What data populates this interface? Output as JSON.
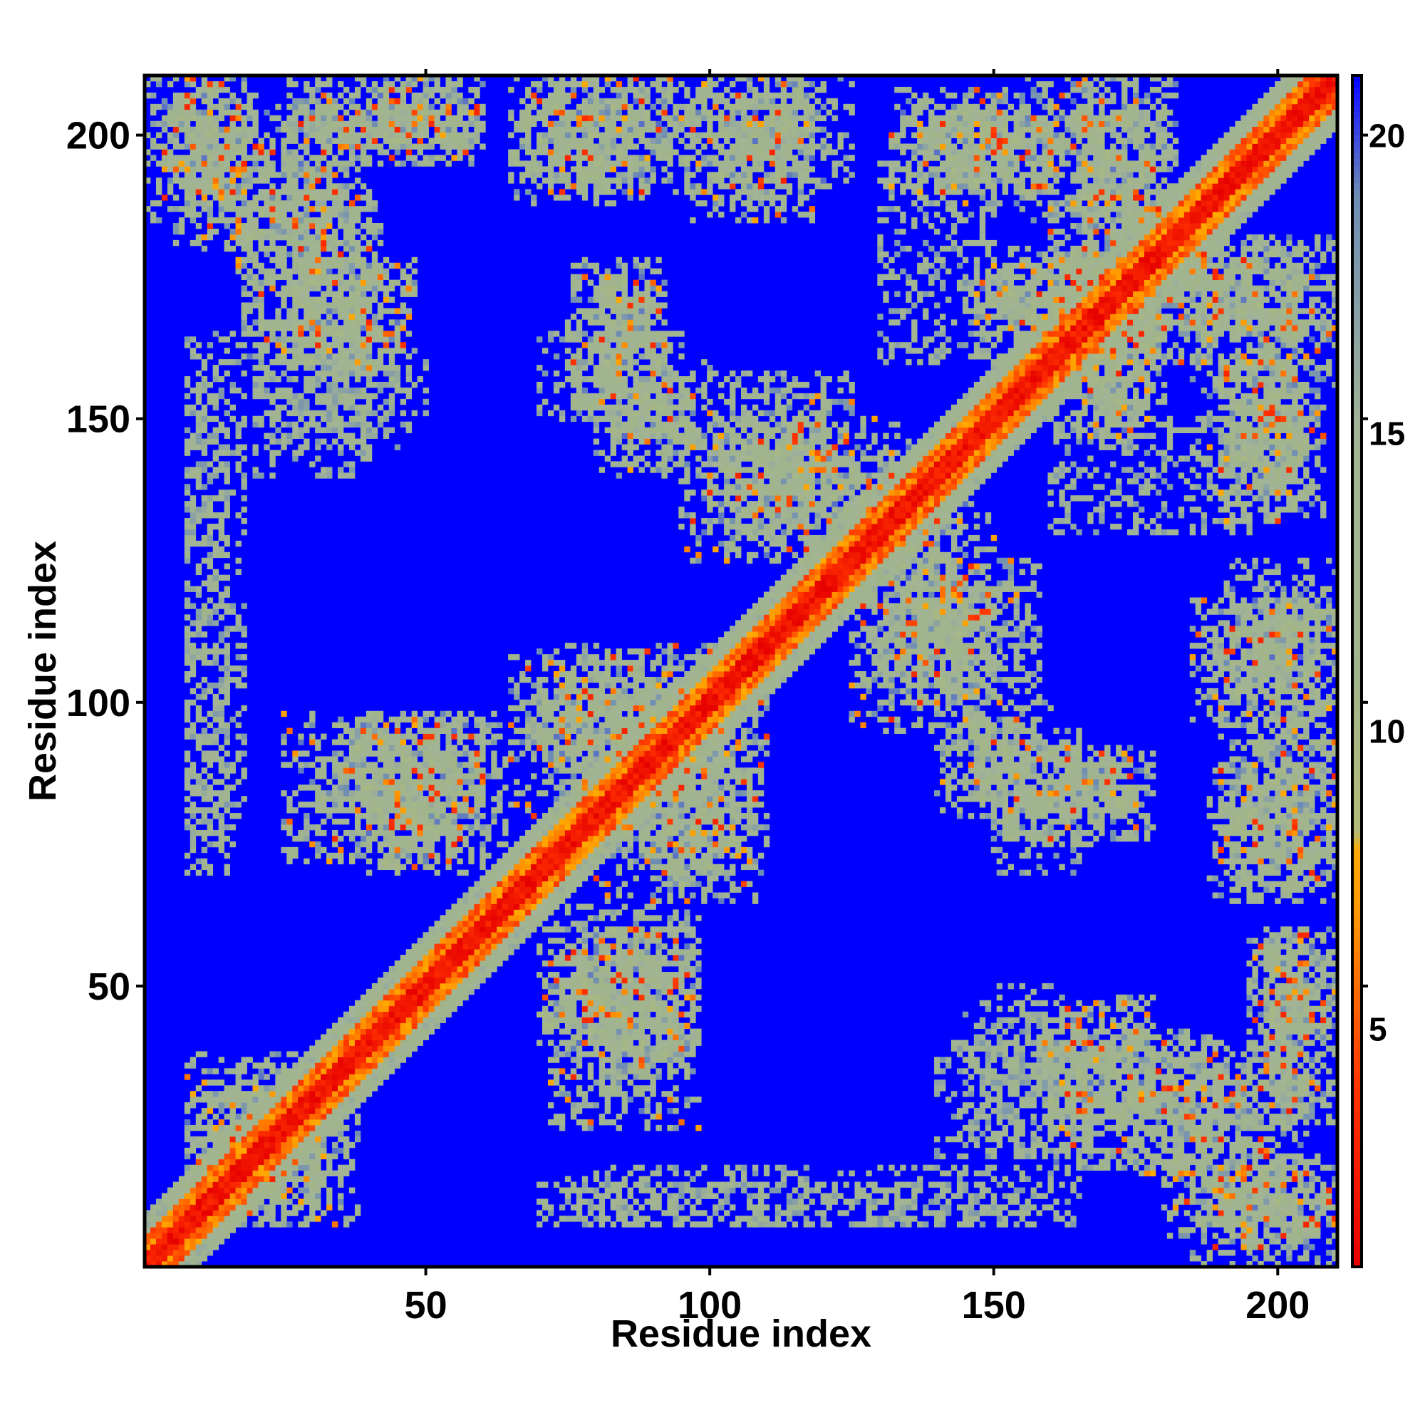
{
  "chart_data": {
    "type": "heatmap",
    "title": "",
    "xlabel": "Residue index",
    "ylabel": "Residue index",
    "xlim": [
      1,
      210
    ],
    "ylim": [
      1,
      210
    ],
    "x_ticks": [
      50,
      100,
      150,
      200
    ],
    "y_ticks": [
      50,
      100,
      150,
      200
    ],
    "colorbar": {
      "ticks": [
        5,
        10,
        15,
        20
      ],
      "range": [
        1,
        21
      ],
      "colors": {
        "red": "#ff0000",
        "orange": "#ff9900",
        "sage": "#a0b48c",
        "steel": "#7d9bb4",
        "blue": "#0000ff"
      },
      "gradient": [
        {
          "value": 1,
          "color": "#e60000"
        },
        {
          "value": 4,
          "color": "#ff3300"
        },
        {
          "value": 7,
          "color": "#ff9900"
        },
        {
          "value": 8,
          "color": "#ffaa00"
        },
        {
          "value": 8.3,
          "color": "#b4bc78"
        },
        {
          "value": 11,
          "color": "#a0b48c"
        },
        {
          "value": 15,
          "color": "#a3b496"
        },
        {
          "value": 19,
          "color": "#6e8cb4"
        },
        {
          "value": 20.6,
          "color": "#1e1efa"
        },
        {
          "value": 21,
          "color": "#0000ff"
        }
      ]
    },
    "background_value": 21,
    "diagonal": {
      "core": [
        0,
        1,
        2
      ],
      "mid": [
        3,
        4,
        5
      ],
      "outer": [
        6,
        9
      ]
    },
    "contact_regions": [
      {
        "x": [
          5,
          20
        ],
        "y": [
          180,
          210
        ]
      },
      {
        "x": [
          18,
          42
        ],
        "y": [
          160,
          190
        ]
      },
      {
        "x": [
          25,
          60
        ],
        "y": [
          195,
          210
        ]
      },
      {
        "x": [
          65,
          90
        ],
        "y": [
          188,
          210
        ]
      },
      {
        "x": [
          96,
          118
        ],
        "y": [
          185,
          210
        ]
      },
      {
        "x": [
          132,
          160
        ],
        "y": [
          190,
          208
        ]
      },
      {
        "x": [
          165,
          180
        ],
        "y": [
          175,
          205
        ]
      },
      {
        "x": [
          148,
          190
        ],
        "y": [
          160,
          180
        ]
      },
      {
        "x": [
          185,
          210
        ],
        "y": [
          155,
          182
        ]
      },
      {
        "x": [
          75,
          92
        ],
        "y": [
          150,
          178
        ]
      },
      {
        "x": [
          95,
          135
        ],
        "y": [
          125,
          150
        ]
      },
      {
        "x": [
          165,
          178
        ],
        "y": [
          145,
          170
        ]
      },
      {
        "x": [
          188,
          205
        ],
        "y": [
          135,
          160
        ]
      },
      {
        "x": [
          130,
          158
        ],
        "y": [
          100,
          125
        ]
      },
      {
        "x": [
          25,
          60
        ],
        "y": [
          72,
          98
        ]
      },
      {
        "x": [
          65,
          90
        ],
        "y": [
          80,
          108
        ]
      },
      {
        "x": [
          88,
          110
        ],
        "y": [
          70,
          100
        ]
      },
      {
        "x": [
          70,
          98
        ],
        "y": [
          38,
          64
        ]
      },
      {
        "x": [
          140,
          160
        ],
        "y": [
          80,
          100
        ]
      },
      {
        "x": [
          162,
          175
        ],
        "y": [
          80,
          92
        ]
      },
      {
        "x": [
          190,
          210
        ],
        "y": [
          70,
          100
        ]
      },
      {
        "x": [
          190,
          210
        ],
        "y": [
          100,
          125
        ]
      },
      {
        "x": [
          158,
          178
        ],
        "y": [
          25,
          48
        ]
      },
      {
        "x": [
          175,
          205
        ],
        "y": [
          15,
          40
        ]
      },
      {
        "x": [
          185,
          210
        ],
        "y": [
          1,
          20
        ]
      },
      {
        "x": [
          8,
          38
        ],
        "y": [
          8,
          30
        ]
      },
      {
        "x": [
          195,
          210
        ],
        "y": [
          40,
          60
        ]
      }
    ],
    "sparse_regions": [
      {
        "x": [
          8,
          15
        ],
        "y": [
          120,
          155
        ]
      },
      {
        "x": [
          8,
          15
        ],
        "y": [
          70,
          118
        ]
      },
      {
        "x": [
          70,
          95
        ],
        "y": [
          150,
          165
        ]
      },
      {
        "x": [
          75,
          165
        ],
        "y": [
          8,
          18
        ]
      },
      {
        "x": [
          145,
          165
        ],
        "y": [
          20,
          45
        ]
      },
      {
        "x": [
          30,
          50
        ],
        "y": [
          148,
          160
        ]
      },
      {
        "x": [
          130,
          150
        ],
        "y": [
          160,
          195
        ]
      },
      {
        "x": [
          20,
          40
        ],
        "y": [
          140,
          165
        ]
      }
    ]
  }
}
